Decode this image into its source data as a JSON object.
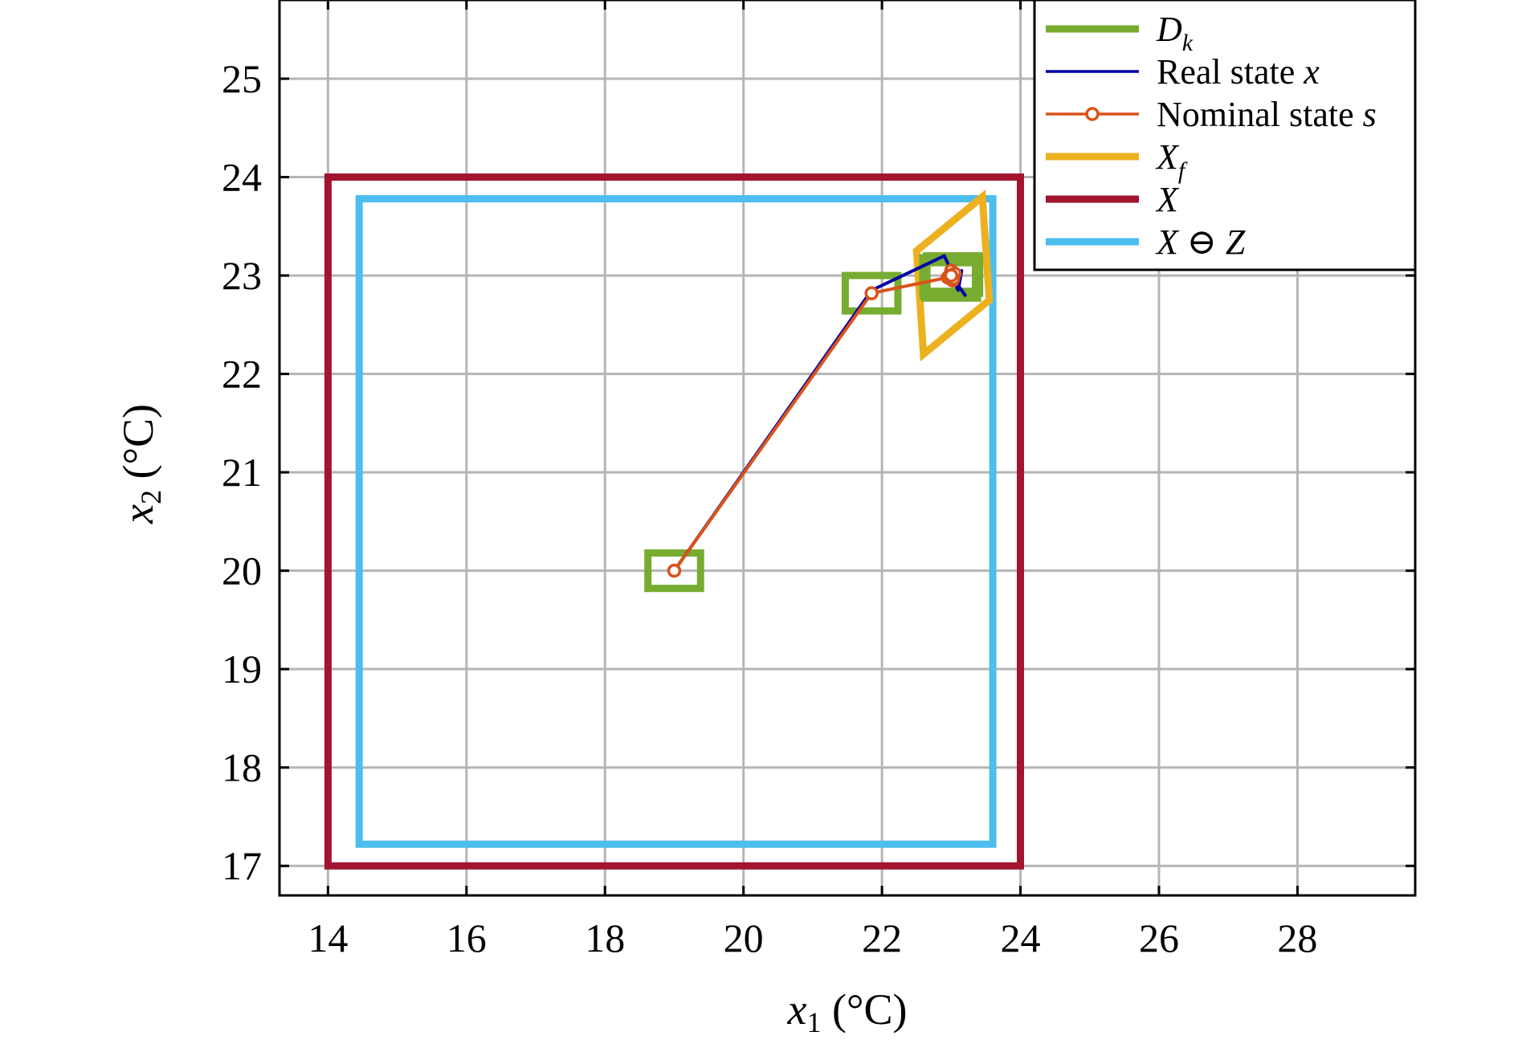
{
  "chart_data": {
    "type": "line",
    "title": "",
    "xlabel": {
      "var": "x",
      "sub": "1",
      "unit": " (°C)"
    },
    "ylabel": {
      "var": "x",
      "sub": "2",
      "unit": " (°C)"
    },
    "xlim": [
      13.3,
      29.7
    ],
    "ylim": [
      16.7,
      25.8
    ],
    "xticks": [
      14,
      16,
      18,
      20,
      22,
      24,
      26,
      28
    ],
    "yticks": [
      17,
      18,
      19,
      20,
      21,
      22,
      23,
      24,
      25
    ],
    "xtick_labels": [
      "14",
      "16",
      "18",
      "20",
      "22",
      "24",
      "26",
      "28"
    ],
    "ytick_labels": [
      "17",
      "18",
      "19",
      "20",
      "21",
      "22",
      "23",
      "24",
      "25"
    ],
    "grid": true,
    "legend_position": "top-right",
    "legend": [
      {
        "var": "D",
        "sub": "k",
        "rest": "",
        "var_after": "",
        "color": "#77ac30",
        "style": "thick"
      },
      {
        "var": "",
        "sub": "",
        "rest": "Real state ",
        "var_after": "x",
        "color": "#0000a6",
        "style": "thin"
      },
      {
        "var": "",
        "sub": "",
        "rest": "Nominal state ",
        "var_after": "s",
        "color": "#d95319",
        "style": "marker"
      },
      {
        "var": "X",
        "sub": "f",
        "rest": "",
        "var_after": "",
        "color": "#edb120",
        "style": "thick"
      },
      {
        "var": "X",
        "sub": "",
        "rest": "",
        "var_after": "",
        "color": "#a2142f",
        "style": "thick"
      },
      {
        "var": "X",
        "sub": "",
        "rest": " ⊖ ",
        "var_after": "Z",
        "color": "#4dbeee",
        "style": "thick"
      }
    ],
    "series": [
      {
        "name": "X",
        "kind": "polygon",
        "color": "#a2142f",
        "points": [
          [
            14,
            17
          ],
          [
            24,
            17
          ],
          [
            24,
            24
          ],
          [
            14,
            24
          ]
        ]
      },
      {
        "name": "X ⊖ Z",
        "kind": "polygon",
        "color": "#4dbeee",
        "points": [
          [
            14.45,
            17.22
          ],
          [
            23.6,
            17.22
          ],
          [
            23.6,
            23.78
          ],
          [
            14.45,
            23.78
          ]
        ]
      },
      {
        "name": "Xf",
        "kind": "polygon",
        "color": "#edb120",
        "points": [
          [
            22.5,
            23.25
          ],
          [
            23.45,
            23.8
          ],
          [
            23.55,
            22.75
          ],
          [
            22.6,
            22.2
          ]
        ]
      },
      {
        "name": "Dk",
        "kind": "boxes",
        "color": "#77ac30",
        "boxes": [
          {
            "center": [
              19.0,
              20.0
            ],
            "half_width": [
              0.38,
              0.18
            ]
          },
          {
            "center": [
              21.85,
              22.82
            ],
            "half_width": [
              0.38,
              0.18
            ]
          },
          {
            "center": [
              22.97,
              23.0
            ],
            "half_width": [
              0.38,
              0.18
            ]
          },
          {
            "center": [
              23.0,
              22.95
            ],
            "half_width": [
              0.38,
              0.18
            ]
          },
          {
            "center": [
              23.02,
              23.02
            ],
            "half_width": [
              0.38,
              0.18
            ]
          },
          {
            "center": [
              22.98,
              22.97
            ],
            "half_width": [
              0.38,
              0.18
            ]
          },
          {
            "center": [
              23.03,
              23.0
            ],
            "half_width": [
              0.38,
              0.18
            ]
          }
        ]
      },
      {
        "name": "Real state x",
        "kind": "line",
        "color": "#0000a6",
        "points": [
          [
            19.0,
            20.0
          ],
          [
            21.85,
            22.85
          ],
          [
            22.9,
            23.2
          ],
          [
            23.1,
            22.9
          ],
          [
            23.2,
            22.8
          ],
          [
            22.95,
            23.05
          ],
          [
            23.1,
            22.85
          ],
          [
            23.15,
            23.05
          ],
          [
            23.0,
            22.9
          ],
          [
            23.1,
            22.95
          ],
          [
            23.05,
            23.0
          ]
        ]
      },
      {
        "name": "Nominal state s",
        "kind": "line-marker",
        "color": "#d95319",
        "points": [
          [
            19.0,
            20.0
          ],
          [
            21.85,
            22.82
          ],
          [
            22.95,
            22.98
          ],
          [
            23.0,
            23.05
          ],
          [
            23.02,
            22.95
          ],
          [
            23.05,
            23.02
          ],
          [
            22.98,
            23.0
          ],
          [
            23.03,
            22.97
          ],
          [
            23.0,
            23.0
          ]
        ]
      }
    ]
  }
}
